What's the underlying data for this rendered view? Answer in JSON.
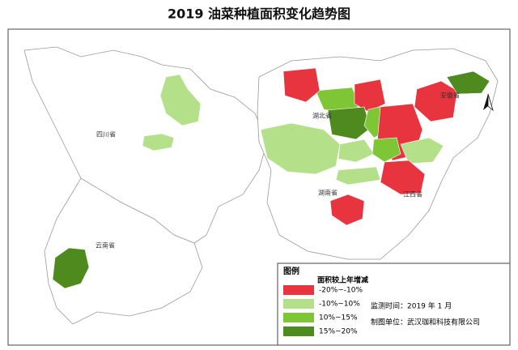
{
  "header": {
    "title": "2019 油菜种植面积变化趋势图"
  },
  "map": {
    "labels": [
      {
        "text": "四川省"
      },
      {
        "text": "云南省"
      },
      {
        "text": "湖北省"
      },
      {
        "text": "湖南省"
      },
      {
        "text": "江西省"
      },
      {
        "text": "安徽省"
      }
    ]
  },
  "legend": {
    "title": "图例",
    "subtitle": "面积较上年增减",
    "items": [
      {
        "label": "-20%~-10%",
        "color": "#e8343f"
      },
      {
        "label": "-10%~10%",
        "color": "#b5e08a"
      },
      {
        "label": "10%~15%",
        "color": "#7ec636"
      },
      {
        "label": "15%~20%",
        "color": "#4e8a1d"
      }
    ],
    "notes": [
      "监测时间：2019 年 1 月",
      "制图单位：武汉珈和科技有限公司"
    ]
  }
}
